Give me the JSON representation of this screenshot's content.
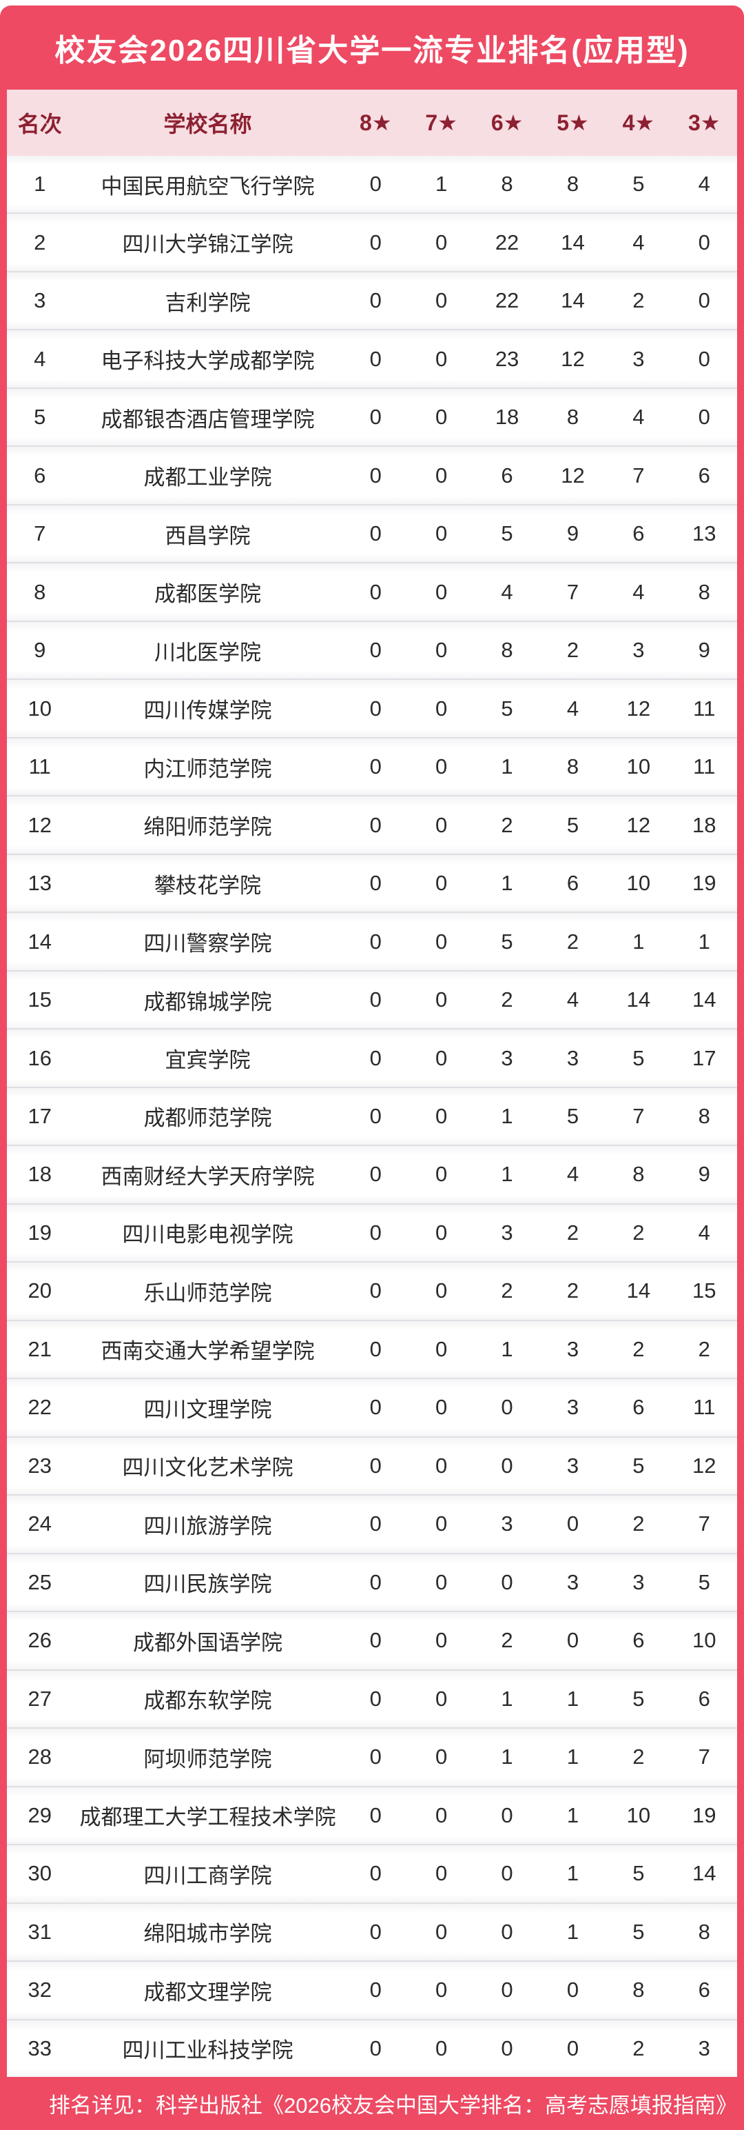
{
  "title": "校友会2026四川省大学一流专业排名(应用型)",
  "footer": {
    "note": "排名详见：科学出版社《2026校友会中国大学排名：高考志愿填报指南》"
  },
  "colors": {
    "accent_red": "#ee4a63",
    "header_pink": "#f7dee2",
    "header_text": "#8d2032",
    "body_text": "#2b2b2b"
  },
  "chart_data": {
    "type": "table",
    "title": "校友会2026四川省大学一流专业排名(应用型)",
    "columns": [
      "名次",
      "学校名称",
      "8★",
      "7★",
      "6★",
      "5★",
      "4★",
      "3★"
    ],
    "rows": [
      [
        1,
        "中国民用航空飞行学院",
        0,
        1,
        8,
        8,
        5,
        4
      ],
      [
        2,
        "四川大学锦江学院",
        0,
        0,
        22,
        14,
        4,
        0
      ],
      [
        3,
        "吉利学院",
        0,
        0,
        22,
        14,
        2,
        0
      ],
      [
        4,
        "电子科技大学成都学院",
        0,
        0,
        23,
        12,
        3,
        0
      ],
      [
        5,
        "成都银杏酒店管理学院",
        0,
        0,
        18,
        8,
        4,
        0
      ],
      [
        6,
        "成都工业学院",
        0,
        0,
        6,
        12,
        7,
        6
      ],
      [
        7,
        "西昌学院",
        0,
        0,
        5,
        9,
        6,
        13
      ],
      [
        8,
        "成都医学院",
        0,
        0,
        4,
        7,
        4,
        8
      ],
      [
        9,
        "川北医学院",
        0,
        0,
        8,
        2,
        3,
        9
      ],
      [
        10,
        "四川传媒学院",
        0,
        0,
        5,
        4,
        12,
        11
      ],
      [
        11,
        "内江师范学院",
        0,
        0,
        1,
        8,
        10,
        11
      ],
      [
        12,
        "绵阳师范学院",
        0,
        0,
        2,
        5,
        12,
        18
      ],
      [
        13,
        "攀枝花学院",
        0,
        0,
        1,
        6,
        10,
        19
      ],
      [
        14,
        "四川警察学院",
        0,
        0,
        5,
        2,
        1,
        1
      ],
      [
        15,
        "成都锦城学院",
        0,
        0,
        2,
        4,
        14,
        14
      ],
      [
        16,
        "宜宾学院",
        0,
        0,
        3,
        3,
        5,
        17
      ],
      [
        17,
        "成都师范学院",
        0,
        0,
        1,
        5,
        7,
        8
      ],
      [
        18,
        "西南财经大学天府学院",
        0,
        0,
        1,
        4,
        8,
        9
      ],
      [
        19,
        "四川电影电视学院",
        0,
        0,
        3,
        2,
        2,
        4
      ],
      [
        20,
        "乐山师范学院",
        0,
        0,
        2,
        2,
        14,
        15
      ],
      [
        21,
        "西南交通大学希望学院",
        0,
        0,
        1,
        3,
        2,
        2
      ],
      [
        22,
        "四川文理学院",
        0,
        0,
        0,
        3,
        6,
        11
      ],
      [
        23,
        "四川文化艺术学院",
        0,
        0,
        0,
        3,
        5,
        12
      ],
      [
        24,
        "四川旅游学院",
        0,
        0,
        3,
        0,
        2,
        7
      ],
      [
        25,
        "四川民族学院",
        0,
        0,
        0,
        3,
        3,
        5
      ],
      [
        26,
        "成都外国语学院",
        0,
        0,
        2,
        0,
        6,
        10
      ],
      [
        27,
        "成都东软学院",
        0,
        0,
        1,
        1,
        5,
        6
      ],
      [
        28,
        "阿坝师范学院",
        0,
        0,
        1,
        1,
        2,
        7
      ],
      [
        29,
        "成都理工大学工程技术学院",
        0,
        0,
        0,
        1,
        10,
        19
      ],
      [
        30,
        "四川工商学院",
        0,
        0,
        0,
        1,
        5,
        14
      ],
      [
        31,
        "绵阳城市学院",
        0,
        0,
        0,
        1,
        5,
        8
      ],
      [
        32,
        "成都文理学院",
        0,
        0,
        0,
        0,
        8,
        6
      ],
      [
        33,
        "四川工业科技学院",
        0,
        0,
        0,
        0,
        2,
        3
      ]
    ],
    "footnote": "排名详见：科学出版社《2026校友会中国大学排名：高考志愿填报指南》",
    "layout": "red frame, pink header row, white rows with light separators, red footer band"
  }
}
